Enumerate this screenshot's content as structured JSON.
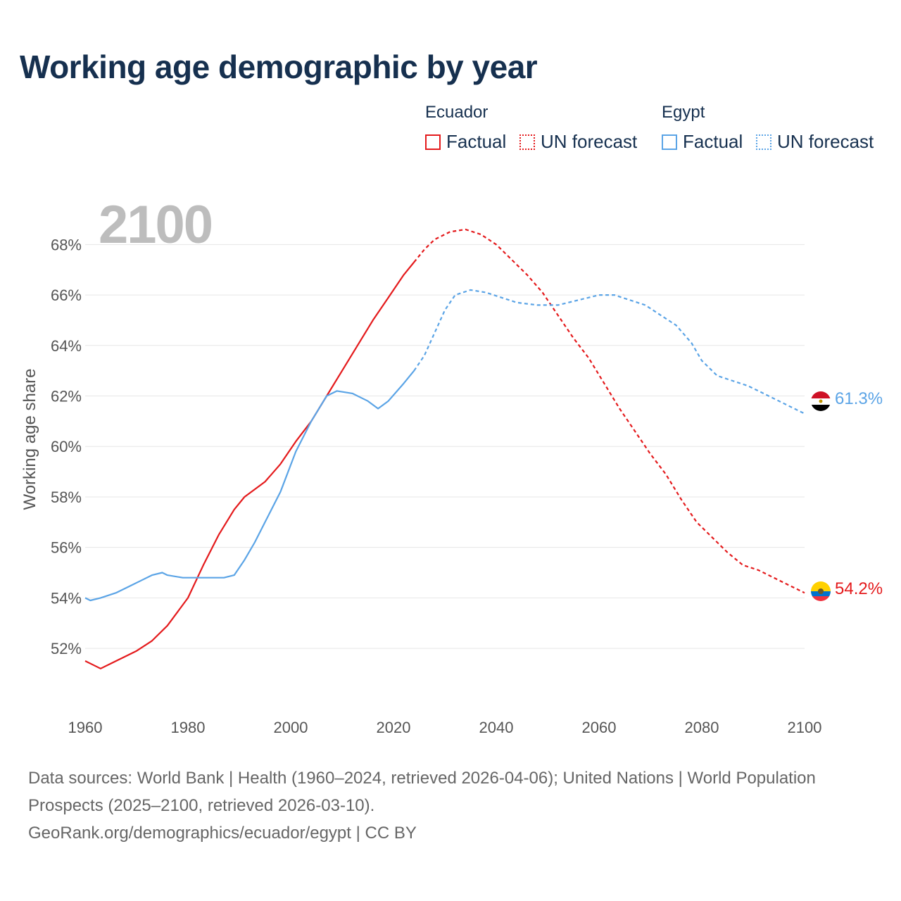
{
  "title": "Working age demographic by year",
  "year_display": "2100",
  "legend": {
    "groups": [
      {
        "name": "Ecuador",
        "color": "#e41a1c",
        "factual_label": "Factual",
        "forecast_label": "UN forecast"
      },
      {
        "name": "Egypt",
        "color": "#5ba4e6",
        "factual_label": "Factual",
        "forecast_label": "UN forecast"
      }
    ]
  },
  "end_labels": {
    "egypt": "61.3%",
    "ecuador": "54.2%"
  },
  "footer": {
    "sources": "Data sources: World Bank | Health (1960–2024, retrieved 2026-04-06); United Nations | World Population Prospects (2025–2100, retrieved 2026-03-10).",
    "credit": "GeoRank.org/demographics/ecuador/egypt | CC BY"
  },
  "chart_data": {
    "type": "line",
    "title": "Working age demographic by year",
    "xlabel": "",
    "ylabel": "Working age share",
    "xlim": [
      1960,
      2100
    ],
    "ylim": [
      49.8,
      69.6
    ],
    "x_ticks": [
      1960,
      1980,
      2000,
      2020,
      2040,
      2060,
      2080,
      2100
    ],
    "y_ticks": [
      52,
      54,
      56,
      58,
      60,
      62,
      64,
      66,
      68
    ],
    "y_tick_labels": [
      "52%",
      "54%",
      "56%",
      "58%",
      "60%",
      "62%",
      "64%",
      "66%",
      "68%"
    ],
    "x_tick_labels": [
      "1960",
      "1980",
      "2000",
      "2020",
      "2040",
      "2060",
      "2080",
      "2100"
    ],
    "grid": true,
    "factual_end_year": 2024,
    "series": [
      {
        "name": "Ecuador",
        "color": "#e41a1c",
        "points": [
          [
            1960,
            51.5
          ],
          [
            1963,
            51.2
          ],
          [
            1965,
            51.4
          ],
          [
            1970,
            51.9
          ],
          [
            1973,
            52.3
          ],
          [
            1976,
            52.9
          ],
          [
            1980,
            54.0
          ],
          [
            1983,
            55.3
          ],
          [
            1986,
            56.5
          ],
          [
            1989,
            57.5
          ],
          [
            1991,
            58.0
          ],
          [
            1995,
            58.6
          ],
          [
            1998,
            59.3
          ],
          [
            2001,
            60.2
          ],
          [
            2004,
            61.0
          ],
          [
            2007,
            62.0
          ],
          [
            2010,
            63.0
          ],
          [
            2013,
            64.0
          ],
          [
            2016,
            65.0
          ],
          [
            2019,
            65.9
          ],
          [
            2022,
            66.8
          ],
          [
            2024,
            67.3
          ],
          [
            2026,
            67.8
          ],
          [
            2028,
            68.2
          ],
          [
            2031,
            68.5
          ],
          [
            2034,
            68.6
          ],
          [
            2037,
            68.4
          ],
          [
            2040,
            68.0
          ],
          [
            2043,
            67.4
          ],
          [
            2046,
            66.8
          ],
          [
            2049,
            66.1
          ],
          [
            2052,
            65.2
          ],
          [
            2055,
            64.3
          ],
          [
            2058,
            63.5
          ],
          [
            2061,
            62.5
          ],
          [
            2064,
            61.5
          ],
          [
            2067,
            60.6
          ],
          [
            2070,
            59.7
          ],
          [
            2073,
            58.9
          ],
          [
            2076,
            57.9
          ],
          [
            2079,
            57.0
          ],
          [
            2082,
            56.4
          ],
          [
            2085,
            55.8
          ],
          [
            2088,
            55.3
          ],
          [
            2091,
            55.1
          ],
          [
            2094,
            54.8
          ],
          [
            2097,
            54.5
          ],
          [
            2100,
            54.2
          ]
        ]
      },
      {
        "name": "Egypt",
        "color": "#5ba4e6",
        "points": [
          [
            1960,
            54.0
          ],
          [
            1961,
            53.9
          ],
          [
            1963,
            54.0
          ],
          [
            1966,
            54.2
          ],
          [
            1969,
            54.5
          ],
          [
            1971,
            54.7
          ],
          [
            1973,
            54.9
          ],
          [
            1975,
            55.0
          ],
          [
            1976,
            54.9
          ],
          [
            1979,
            54.8
          ],
          [
            1983,
            54.8
          ],
          [
            1987,
            54.8
          ],
          [
            1989,
            54.9
          ],
          [
            1991,
            55.5
          ],
          [
            1993,
            56.2
          ],
          [
            1995,
            57.0
          ],
          [
            1998,
            58.2
          ],
          [
            2001,
            59.8
          ],
          [
            2004,
            61.0
          ],
          [
            2007,
            62.0
          ],
          [
            2009,
            62.2
          ],
          [
            2012,
            62.1
          ],
          [
            2015,
            61.8
          ],
          [
            2017,
            61.5
          ],
          [
            2019,
            61.8
          ],
          [
            2022,
            62.5
          ],
          [
            2024,
            63.0
          ],
          [
            2026,
            63.6
          ],
          [
            2028,
            64.5
          ],
          [
            2030,
            65.4
          ],
          [
            2032,
            66.0
          ],
          [
            2035,
            66.2
          ],
          [
            2038,
            66.1
          ],
          [
            2041,
            65.9
          ],
          [
            2044,
            65.7
          ],
          [
            2048,
            65.6
          ],
          [
            2052,
            65.6
          ],
          [
            2056,
            65.8
          ],
          [
            2060,
            66.0
          ],
          [
            2063,
            66.0
          ],
          [
            2066,
            65.8
          ],
          [
            2069,
            65.6
          ],
          [
            2072,
            65.2
          ],
          [
            2075,
            64.8
          ],
          [
            2078,
            64.1
          ],
          [
            2080,
            63.4
          ],
          [
            2083,
            62.8
          ],
          [
            2086,
            62.6
          ],
          [
            2089,
            62.4
          ],
          [
            2092,
            62.1
          ],
          [
            2095,
            61.8
          ],
          [
            2098,
            61.5
          ],
          [
            2100,
            61.3
          ]
        ]
      }
    ]
  }
}
